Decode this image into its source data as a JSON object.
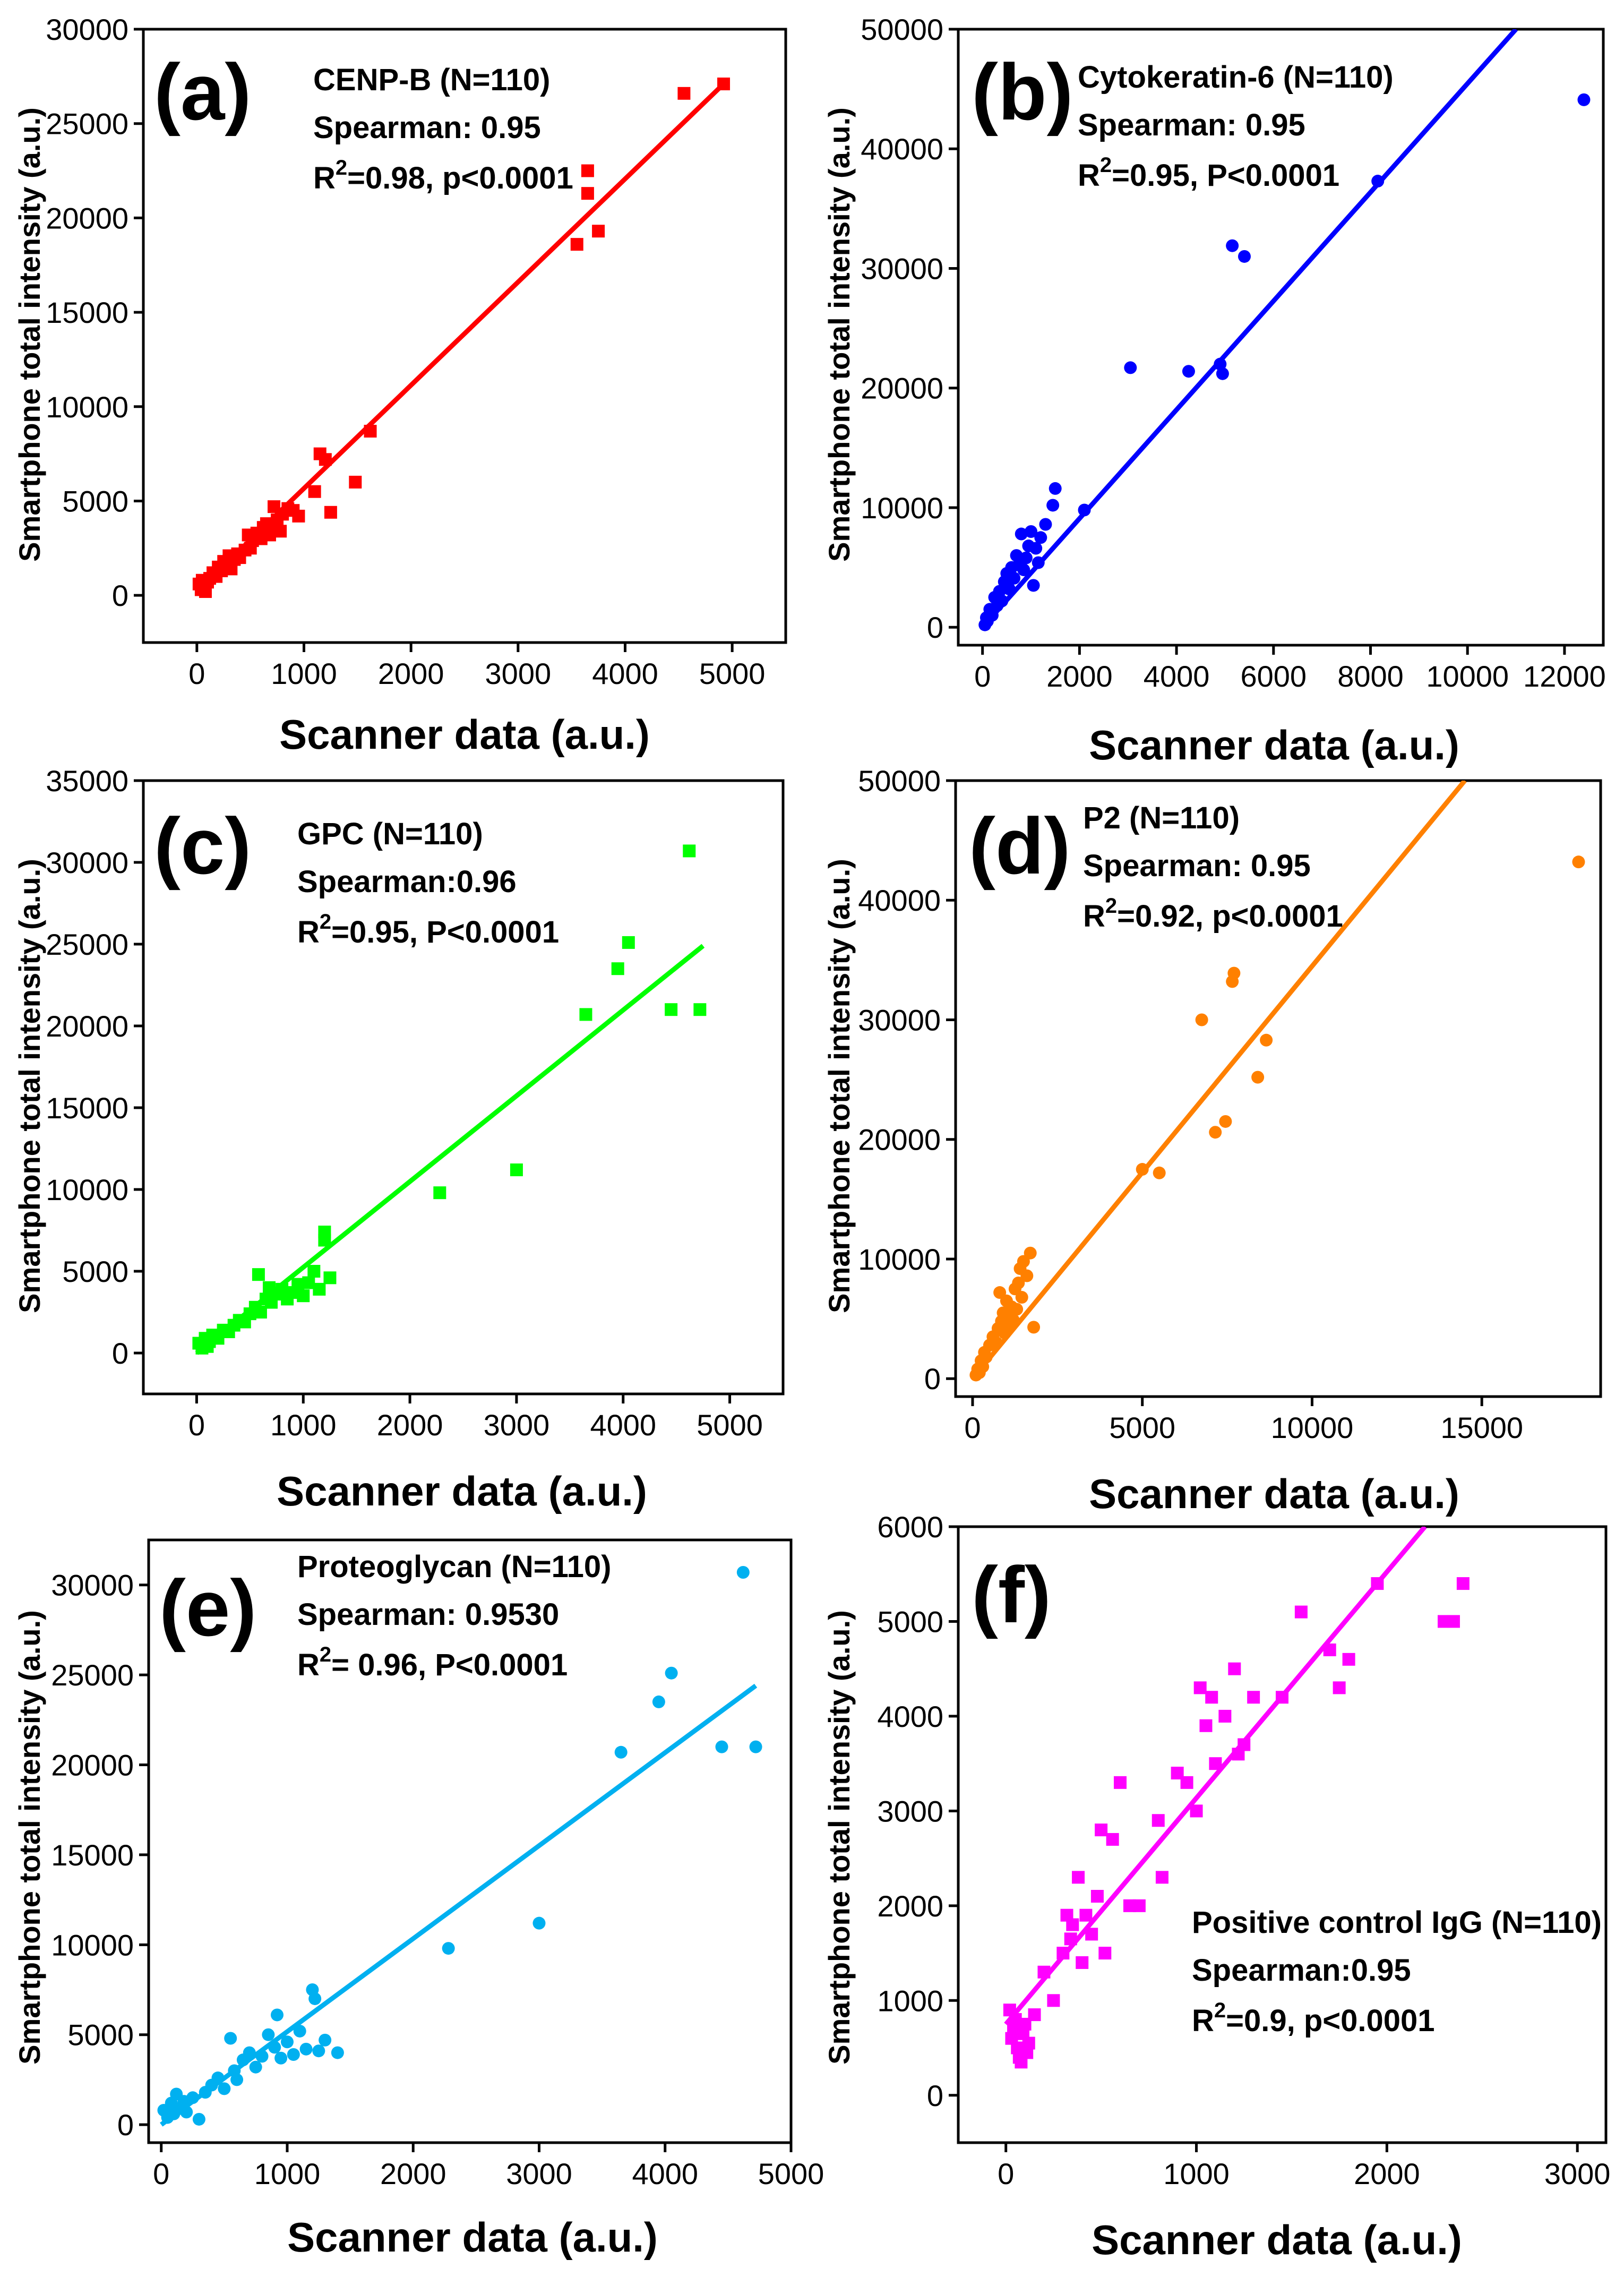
{
  "chart_data": [
    {
      "panel": "(a)",
      "type": "scatter",
      "color": "#ff0000",
      "marker": "square",
      "xlabel": "Scanner data (a.u.)",
      "ylabel": "Smartphone total intensity (a.u.)",
      "xlim": [
        -500,
        5500
      ],
      "ylim": [
        -2500,
        30000
      ],
      "xticks": [
        0,
        1000,
        2000,
        3000,
        4000,
        5000
      ],
      "yticks": [
        0,
        5000,
        10000,
        15000,
        20000,
        25000,
        30000
      ],
      "annotation": {
        "line1": "CENP-B (N=110)",
        "line2": "Spearman: 0.95",
        "r2": "=0.98, p<0.0001"
      },
      "fit": {
        "x0": 0,
        "y0": 200,
        "x1": 4920,
        "y1": 27100
      },
      "points": [
        [
          20,
          600
        ],
        [
          40,
          300
        ],
        [
          50,
          800
        ],
        [
          60,
          400
        ],
        [
          80,
          200
        ],
        [
          100,
          700
        ],
        [
          120,
          900
        ],
        [
          150,
          1200
        ],
        [
          180,
          1000
        ],
        [
          200,
          1500
        ],
        [
          230,
          1300
        ],
        [
          250,
          1800
        ],
        [
          280,
          1700
        ],
        [
          300,
          2100
        ],
        [
          320,
          1400
        ],
        [
          350,
          1900
        ],
        [
          380,
          2200
        ],
        [
          400,
          2000
        ],
        [
          450,
          2400
        ],
        [
          480,
          3200
        ],
        [
          500,
          2500
        ],
        [
          520,
          2900
        ],
        [
          560,
          3300
        ],
        [
          600,
          3000
        ],
        [
          620,
          3600
        ],
        [
          650,
          3800
        ],
        [
          680,
          3200
        ],
        [
          700,
          3500
        ],
        [
          720,
          4700
        ],
        [
          750,
          4000
        ],
        [
          780,
          3400
        ],
        [
          800,
          4300
        ],
        [
          850,
          4600
        ],
        [
          900,
          4500
        ],
        [
          950,
          4200
        ],
        [
          1100,
          5500
        ],
        [
          1150,
          7500
        ],
        [
          1200,
          7200
        ],
        [
          1250,
          4400
        ],
        [
          1480,
          6000
        ],
        [
          1620,
          8700
        ],
        [
          3550,
          18600
        ],
        [
          3650,
          22500
        ],
        [
          3650,
          21300
        ],
        [
          3750,
          19300
        ],
        [
          4550,
          26600
        ],
        [
          4920,
          27100
        ]
      ]
    },
    {
      "panel": "(b)",
      "type": "scatter",
      "color": "#0000ff",
      "marker": "circle",
      "xlabel": "Scanner data (a.u.)",
      "ylabel": "Smartphone total intensity (a.u.)",
      "xlim": [
        -500,
        12800
      ],
      "ylim": [
        -1500,
        50000
      ],
      "xticks": [
        0,
        2000,
        4000,
        6000,
        8000,
        10000,
        12000
      ],
      "yticks": [
        0,
        10000,
        20000,
        30000,
        40000,
        50000
      ],
      "annotation": {
        "line1": "Cytokeratin-6 (N=110)",
        "line2": "Spearman: 0.95",
        "r2": "=0.95, P<0.0001"
      },
      "fit": {
        "x0": 0,
        "y0": 0,
        "x1": 11000,
        "y1": 50000
      },
      "points": [
        [
          50,
          200
        ],
        [
          80,
          800
        ],
        [
          100,
          500
        ],
        [
          150,
          1500
        ],
        [
          200,
          1000
        ],
        [
          250,
          2500
        ],
        [
          300,
          1800
        ],
        [
          350,
          3000
        ],
        [
          400,
          2200
        ],
        [
          450,
          3800
        ],
        [
          500,
          4500
        ],
        [
          550,
          3200
        ],
        [
          600,
          5000
        ],
        [
          650,
          4100
        ],
        [
          700,
          6000
        ],
        [
          750,
          5200
        ],
        [
          800,
          7800
        ],
        [
          850,
          4800
        ],
        [
          900,
          5800
        ],
        [
          950,
          6800
        ],
        [
          1000,
          8000
        ],
        [
          1050,
          3500
        ],
        [
          1100,
          6600
        ],
        [
          1150,
          5400
        ],
        [
          1200,
          7500
        ],
        [
          1300,
          8600
        ],
        [
          1450,
          10200
        ],
        [
          1500,
          11600
        ],
        [
          2100,
          9800
        ],
        [
          3050,
          21700
        ],
        [
          4250,
          21400
        ],
        [
          4900,
          22000
        ],
        [
          4950,
          21200
        ],
        [
          5150,
          31900
        ],
        [
          5400,
          31000
        ],
        [
          8150,
          37300
        ],
        [
          12400,
          44100
        ]
      ]
    },
    {
      "panel": "(c)",
      "type": "scatter",
      "color": "#00ff00",
      "marker": "square",
      "xlabel": "Scanner data (a.u.)",
      "ylabel": "Smartphone total intensity (a.u.)",
      "xlim": [
        -500,
        5500
      ],
      "ylim": [
        -2500,
        35000
      ],
      "xticks": [
        0,
        1000,
        2000,
        3000,
        4000,
        5000
      ],
      "yticks": [
        0,
        5000,
        10000,
        15000,
        20000,
        25000,
        30000,
        35000
      ],
      "annotation": {
        "line1": "GPC (N=110)",
        "line2": "Spearman:0.96",
        "r2": "=0.95, P<0.0001"
      },
      "fit": {
        "x0": 0,
        "y0": 0,
        "x1": 4750,
        "y1": 24900
      },
      "points": [
        [
          20,
          600
        ],
        [
          50,
          300
        ],
        [
          80,
          900
        ],
        [
          100,
          400
        ],
        [
          120,
          700
        ],
        [
          150,
          1100
        ],
        [
          200,
          900
        ],
        [
          250,
          1400
        ],
        [
          300,
          1300
        ],
        [
          350,
          1700
        ],
        [
          400,
          2000
        ],
        [
          450,
          1900
        ],
        [
          500,
          2400
        ],
        [
          550,
          2800
        ],
        [
          580,
          4800
        ],
        [
          600,
          2500
        ],
        [
          650,
          3300
        ],
        [
          680,
          4000
        ],
        [
          700,
          3100
        ],
        [
          750,
          3600
        ],
        [
          800,
          3900
        ],
        [
          850,
          3300
        ],
        [
          900,
          3700
        ],
        [
          950,
          4200
        ],
        [
          1000,
          3500
        ],
        [
          1050,
          4300
        ],
        [
          1100,
          5000
        ],
        [
          1150,
          3900
        ],
        [
          1200,
          7400
        ],
        [
          1200,
          6900
        ],
        [
          1250,
          4600
        ],
        [
          2280,
          9800
        ],
        [
          3000,
          11200
        ],
        [
          3650,
          20700
        ],
        [
          3950,
          23500
        ],
        [
          4050,
          25100
        ],
        [
          4450,
          21000
        ],
        [
          4620,
          30700
        ],
        [
          4720,
          21000
        ]
      ]
    },
    {
      "panel": "(d)",
      "type": "scatter",
      "color": "#ff8000",
      "marker": "circle",
      "xlabel": "Scanner data (a.u.)",
      "ylabel": "Smartphone total intensity (a.u.)",
      "xlim": [
        -500,
        18500
      ],
      "ylim": [
        -1500,
        50000
      ],
      "xticks": [
        0,
        5000,
        10000,
        15000
      ],
      "yticks": [
        0,
        10000,
        20000,
        30000,
        40000,
        50000
      ],
      "annotation": {
        "line1": "P2 (N=110)",
        "line2": "Spearman: 0.95",
        "r2": "=0.92, p<0.0001"
      },
      "fit": {
        "x0": 0,
        "y0": 0,
        "x1": 14500,
        "y1": 50000
      },
      "points": [
        [
          100,
          300
        ],
        [
          150,
          800
        ],
        [
          200,
          500
        ],
        [
          250,
          1500
        ],
        [
          300,
          1000
        ],
        [
          350,
          2200
        ],
        [
          400,
          1800
        ],
        [
          500,
          2800
        ],
        [
          600,
          3500
        ],
        [
          700,
          3000
        ],
        [
          750,
          4200
        ],
        [
          800,
          7200
        ],
        [
          850,
          4800
        ],
        [
          900,
          5500
        ],
        [
          950,
          3800
        ],
        [
          1000,
          6500
        ],
        [
          1050,
          4500
        ],
        [
          1100,
          5200
        ],
        [
          1150,
          6000
        ],
        [
          1200,
          4900
        ],
        [
          1250,
          7500
        ],
        [
          1300,
          5800
        ],
        [
          1350,
          8000
        ],
        [
          1400,
          9200
        ],
        [
          1450,
          6800
        ],
        [
          1500,
          9800
        ],
        [
          1600,
          8600
        ],
        [
          1700,
          10500
        ],
        [
          1800,
          4300
        ],
        [
          5000,
          17500
        ],
        [
          5500,
          17200
        ],
        [
          6750,
          30000
        ],
        [
          7150,
          20600
        ],
        [
          7450,
          21500
        ],
        [
          7650,
          33200
        ],
        [
          7700,
          33900
        ],
        [
          8400,
          25200
        ],
        [
          8650,
          28300
        ],
        [
          17850,
          43200
        ]
      ]
    },
    {
      "panel": "(e)",
      "type": "scatter",
      "color": "#00b0f0",
      "marker": "circle",
      "xlabel": "Scanner data (a.u.)",
      "ylabel": "Smartphone total intensity (a.u.)",
      "xlim": [
        -100,
        5000
      ],
      "ylim": [
        -1000,
        32500
      ],
      "xticks": [
        0,
        1000,
        2000,
        3000,
        4000,
        5000
      ],
      "yticks": [
        0,
        5000,
        10000,
        15000,
        20000,
        25000,
        30000
      ],
      "annotation": {
        "line1": "Proteoglycan (N=110)",
        "line2": "Spearman: 0.9530",
        "r2": "= 0.96, P<0.0001"
      },
      "fit": {
        "x0": 0,
        "y0": 0,
        "x1": 4720,
        "y1": 24400
      },
      "points": [
        [
          20,
          800
        ],
        [
          50,
          400
        ],
        [
          80,
          1200
        ],
        [
          100,
          600
        ],
        [
          120,
          1700
        ],
        [
          150,
          900
        ],
        [
          180,
          1300
        ],
        [
          200,
          700
        ],
        [
          250,
          1500
        ],
        [
          300,
          300
        ],
        [
          350,
          1800
        ],
        [
          400,
          2200
        ],
        [
          450,
          2600
        ],
        [
          500,
          2000
        ],
        [
          550,
          4800
        ],
        [
          580,
          3000
        ],
        [
          600,
          2500
        ],
        [
          650,
          3600
        ],
        [
          700,
          4000
        ],
        [
          750,
          3200
        ],
        [
          800,
          3800
        ],
        [
          850,
          5000
        ],
        [
          900,
          4300
        ],
        [
          920,
          6100
        ],
        [
          950,
          3700
        ],
        [
          1000,
          4600
        ],
        [
          1050,
          3900
        ],
        [
          1100,
          5200
        ],
        [
          1150,
          4200
        ],
        [
          1200,
          7500
        ],
        [
          1220,
          7000
        ],
        [
          1250,
          4100
        ],
        [
          1300,
          4700
        ],
        [
          1400,
          4000
        ],
        [
          2280,
          9800
        ],
        [
          3000,
          11200
        ],
        [
          3650,
          20700
        ],
        [
          3950,
          23500
        ],
        [
          4050,
          25100
        ],
        [
          4450,
          21000
        ],
        [
          4620,
          30700
        ],
        [
          4720,
          21000
        ]
      ]
    },
    {
      "panel": "(f)",
      "type": "scatter",
      "color": "#ff00ff",
      "marker": "square",
      "xlabel": "Scanner data (a.u.)",
      "ylabel": "Smartphone total intensity (a.u.)",
      "xlim": [
        -250,
        3150
      ],
      "ylim": [
        -500,
        6000
      ],
      "xticks": [
        0,
        1000,
        2000,
        3000
      ],
      "yticks": [
        0,
        1000,
        2000,
        3000,
        4000,
        5000,
        6000
      ],
      "annotation": {
        "line1": "Positive control IgG (N=110)",
        "line2": "Spearman:0.95",
        "r2": "=0.9, p<0.0001"
      },
      "fit": {
        "x0": 0,
        "y0": 750,
        "x1": 2200,
        "y1": 6000
      },
      "points": [
        [
          20,
          900
        ],
        [
          30,
          600
        ],
        [
          40,
          700
        ],
        [
          50,
          800
        ],
        [
          60,
          500
        ],
        [
          70,
          400
        ],
        [
          80,
          350
        ],
        [
          90,
          650
        ],
        [
          100,
          750
        ],
        [
          110,
          450
        ],
        [
          120,
          550
        ],
        [
          150,
          850
        ],
        [
          200,
          1300
        ],
        [
          250,
          1000
        ],
        [
          300,
          1500
        ],
        [
          320,
          1900
        ],
        [
          340,
          1650
        ],
        [
          350,
          1800
        ],
        [
          380,
          2300
        ],
        [
          400,
          1400
        ],
        [
          420,
          1900
        ],
        [
          450,
          1700
        ],
        [
          480,
          2100
        ],
        [
          500,
          2800
        ],
        [
          520,
          1500
        ],
        [
          560,
          2700
        ],
        [
          600,
          3300
        ],
        [
          650,
          2000
        ],
        [
          700,
          2000
        ],
        [
          800,
          2900
        ],
        [
          820,
          2300
        ],
        [
          900,
          3400
        ],
        [
          950,
          3300
        ],
        [
          1000,
          3000
        ],
        [
          1020,
          4300
        ],
        [
          1050,
          3900
        ],
        [
          1080,
          4200
        ],
        [
          1100,
          3500
        ],
        [
          1150,
          4000
        ],
        [
          1200,
          4500
        ],
        [
          1220,
          3600
        ],
        [
          1250,
          3700
        ],
        [
          1300,
          4200
        ],
        [
          1450,
          4200
        ],
        [
          1550,
          5100
        ],
        [
          1700,
          4700
        ],
        [
          1750,
          4300
        ],
        [
          1800,
          4600
        ],
        [
          1950,
          5400
        ],
        [
          2300,
          5000
        ],
        [
          2350,
          5000
        ],
        [
          2400,
          5400
        ]
      ]
    }
  ]
}
